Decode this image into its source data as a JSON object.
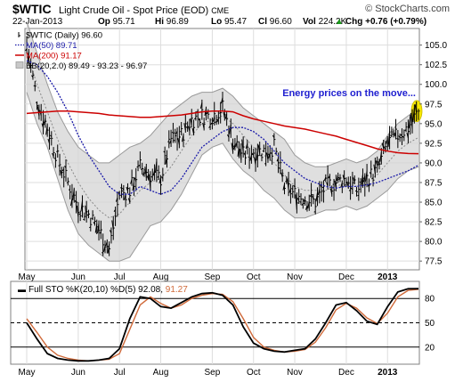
{
  "header": {
    "symbol": "$WTIC",
    "name": "Light Crude Oil - Spot Price (EOD)",
    "exchange": "CME",
    "copyright": "© StockCharts.com",
    "date": "22-Jan-2013",
    "ohlc": [
      {
        "k": "Op",
        "v": "95.71"
      },
      {
        "k": "Hi",
        "v": "96.89"
      },
      {
        "k": "Lo",
        "v": "95.47"
      },
      {
        "k": "Cl",
        "v": "96.60"
      },
      {
        "k": "Vol",
        "v": "224.2K"
      }
    ],
    "change": "Chg +0.76 (+0.79%)",
    "change_arrow": "▲"
  },
  "legend": [
    {
      "label": "$WTIC (Daily) 96.60",
      "color": "#000000",
      "marker": "ohlc"
    },
    {
      "label": "MA(50) 89.71",
      "color": "#1a1aa8",
      "marker": "dotted"
    },
    {
      "label": "MA(200) 91.17",
      "color": "#cc0000",
      "marker": "solid"
    },
    {
      "label": "BB(20,2.0) 89.49 - 93.23 - 96.97",
      "color": "#888888",
      "marker": "box"
    }
  ],
  "annotation": {
    "text": "Energy prices on the move...",
    "color": "#1f1fd0"
  },
  "highlight_color": "#f5e600",
  "colors": {
    "price": "#000000",
    "ma50": "#1a1aa8",
    "ma200": "#cc0000",
    "band_fill": "#d4d4d4",
    "band_edge": "#9a9a9a",
    "grid": "#dddddd",
    "sto_k": "#000000",
    "sto_d": "#d06a3a"
  },
  "chart_data": [
    {
      "type": "line",
      "title": "$WTIC Light Crude Oil - Spot Price (EOD) CME",
      "x": [
        "2012-05-01",
        "2012-05-08",
        "2012-05-15",
        "2012-05-22",
        "2012-05-29",
        "2012-06-05",
        "2012-06-12",
        "2012-06-19",
        "2012-06-26",
        "2012-07-03",
        "2012-07-10",
        "2012-07-17",
        "2012-07-24",
        "2012-07-31",
        "2012-08-07",
        "2012-08-14",
        "2012-08-21",
        "2012-08-28",
        "2012-09-04",
        "2012-09-11",
        "2012-09-18",
        "2012-09-25",
        "2012-10-02",
        "2012-10-09",
        "2012-10-16",
        "2012-10-23",
        "2012-10-30",
        "2012-11-06",
        "2012-11-13",
        "2012-11-20",
        "2012-11-27",
        "2012-12-04",
        "2012-12-11",
        "2012-12-18",
        "2012-12-25",
        "2013-01-01",
        "2013-01-08",
        "2013-01-15",
        "2013-01-22"
      ],
      "series": [
        {
          "name": "$WTIC (Daily)",
          "values": [
            105.0,
            98.0,
            94.5,
            90.5,
            87.5,
            84.5,
            83.5,
            81.5,
            79.0,
            86.0,
            86.5,
            89.5,
            88.5,
            88.0,
            93.0,
            93.5,
            95.5,
            96.0,
            96.0,
            97.0,
            93.0,
            91.0,
            91.5,
            91.5,
            92.0,
            87.0,
            86.0,
            85.5,
            85.0,
            87.0,
            87.5,
            88.0,
            86.5,
            88.0,
            89.0,
            92.5,
            93.5,
            94.5,
            96.6
          ]
        },
        {
          "name": "MA(50)",
          "values": [
            103.0,
            102.5,
            101.0,
            99.0,
            96.5,
            93.5,
            91.0,
            89.0,
            87.0,
            86.0,
            86.0,
            87.0,
            86.5,
            86.0,
            86.5,
            88.0,
            90.0,
            92.0,
            93.0,
            94.0,
            94.5,
            94.5,
            94.0,
            93.0,
            91.5,
            90.0,
            89.0,
            88.0,
            87.5,
            87.0,
            86.8,
            87.0,
            87.0,
            87.2,
            87.5,
            88.0,
            88.5,
            89.0,
            89.71
          ]
        },
        {
          "name": "MA(200)",
          "values": [
            96.3,
            96.4,
            96.5,
            96.6,
            96.6,
            96.5,
            96.4,
            96.3,
            96.1,
            96.0,
            95.9,
            95.8,
            95.8,
            95.9,
            96.0,
            96.1,
            96.3,
            96.5,
            96.6,
            96.6,
            96.5,
            96.0,
            95.6,
            95.3,
            95.0,
            94.7,
            94.5,
            94.3,
            94.0,
            93.7,
            93.4,
            93.0,
            92.6,
            92.2,
            91.8,
            91.5,
            91.3,
            91.2,
            91.17
          ]
        },
        {
          "name": "BB upper",
          "values": [
            108.0,
            104.0,
            100.0,
            96.5,
            94.0,
            92.0,
            91.0,
            90.0,
            90.0,
            91.0,
            92.0,
            92.5,
            93.5,
            95.0,
            96.5,
            97.5,
            98.5,
            99.0,
            99.0,
            99.5,
            98.5,
            97.0,
            96.0,
            95.0,
            94.0,
            93.0,
            91.0,
            90.0,
            89.5,
            89.5,
            90.0,
            90.5,
            90.0,
            90.5,
            91.5,
            93.5,
            95.0,
            96.0,
            96.97
          ]
        },
        {
          "name": "BB middle",
          "values": [
            104.0,
            100.0,
            96.5,
            93.0,
            90.0,
            87.5,
            85.5,
            84.0,
            83.0,
            83.5,
            85.0,
            86.5,
            87.5,
            88.0,
            89.5,
            91.5,
            93.5,
            95.0,
            95.5,
            96.0,
            95.0,
            93.5,
            92.0,
            91.0,
            90.0,
            88.5,
            87.0,
            86.5,
            86.5,
            86.5,
            87.0,
            87.5,
            87.0,
            87.5,
            88.5,
            90.0,
            91.5,
            92.5,
            93.23
          ]
        },
        {
          "name": "BB lower",
          "values": [
            99.0,
            95.0,
            92.0,
            88.0,
            84.0,
            81.0,
            79.5,
            78.5,
            77.5,
            77.5,
            78.0,
            80.0,
            82.0,
            82.5,
            84.0,
            86.0,
            88.5,
            91.0,
            92.0,
            92.5,
            90.5,
            89.0,
            88.0,
            86.5,
            85.5,
            84.0,
            83.0,
            83.0,
            83.5,
            84.0,
            84.0,
            84.5,
            84.0,
            84.5,
            85.5,
            86.5,
            88.0,
            89.0,
            89.49
          ]
        }
      ],
      "ylim": [
        76.5,
        107
      ],
      "yticks": [
        77.5,
        80.0,
        82.5,
        85.0,
        87.5,
        90.0,
        92.5,
        95.0,
        97.5,
        100.0,
        102.5,
        105.0
      ],
      "xticks": [
        "May",
        "Jun",
        "Jul",
        "Aug",
        "Sep",
        "Oct",
        "Nov",
        "Dec",
        "2013"
      ],
      "grid": true,
      "legend": "top-left"
    },
    {
      "type": "line",
      "title": "Full STO %K(20,10) %D(5) 92.08, 91.27",
      "x": [
        "2012-05-01",
        "2012-05-08",
        "2012-05-15",
        "2012-05-22",
        "2012-05-29",
        "2012-06-05",
        "2012-06-12",
        "2012-06-19",
        "2012-06-26",
        "2012-07-03",
        "2012-07-10",
        "2012-07-17",
        "2012-07-24",
        "2012-07-31",
        "2012-08-07",
        "2012-08-14",
        "2012-08-21",
        "2012-08-28",
        "2012-09-04",
        "2012-09-11",
        "2012-09-18",
        "2012-09-25",
        "2012-10-02",
        "2012-10-09",
        "2012-10-16",
        "2012-10-23",
        "2012-10-30",
        "2012-11-06",
        "2012-11-13",
        "2012-11-20",
        "2012-11-27",
        "2012-12-04",
        "2012-12-11",
        "2012-12-18",
        "2012-12-25",
        "2013-01-01",
        "2013-01-08",
        "2013-01-15",
        "2013-01-22"
      ],
      "series": [
        {
          "name": "%K(20,10)",
          "values": [
            50,
            30,
            12,
            6,
            4,
            3,
            3,
            4,
            6,
            18,
            55,
            82,
            80,
            70,
            68,
            75,
            82,
            86,
            87,
            84,
            72,
            45,
            25,
            18,
            15,
            14,
            16,
            18,
            30,
            50,
            72,
            75,
            65,
            52,
            48,
            70,
            88,
            92,
            92.08
          ]
        },
        {
          "name": "%D(5)",
          "values": [
            55,
            38,
            20,
            10,
            6,
            4,
            3,
            4,
            5,
            12,
            42,
            72,
            82,
            74,
            68,
            72,
            80,
            84,
            86,
            85,
            76,
            55,
            32,
            20,
            16,
            14,
            15,
            17,
            26,
            44,
            66,
            74,
            68,
            56,
            49,
            62,
            82,
            90,
            91.27
          ]
        }
      ],
      "ylim": [
        0,
        100
      ],
      "yticks": [
        20,
        50,
        80
      ],
      "xticks": [
        "May",
        "Jun",
        "Jul",
        "Aug",
        "Sep",
        "Oct",
        "Nov",
        "Dec",
        "2013"
      ],
      "legend": "top-left"
    }
  ]
}
